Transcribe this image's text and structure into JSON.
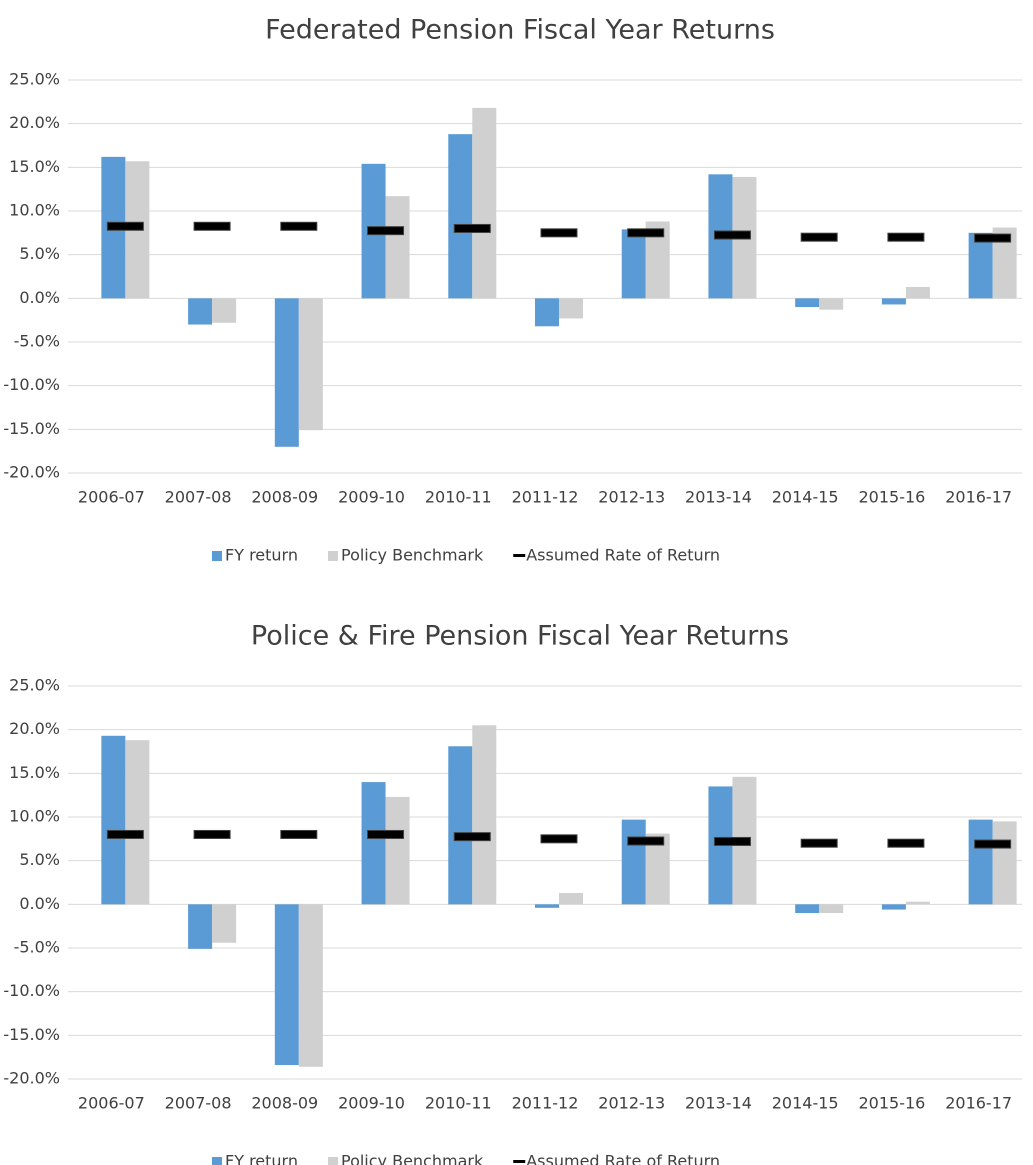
{
  "chart_data": [
    {
      "type": "bar",
      "title": "Federated Pension Fiscal Year Returns",
      "categories": [
        "2006-07",
        "2007-08",
        "2008-09",
        "2009-10",
        "2010-11",
        "2011-12",
        "2012-13",
        "2013-14",
        "2014-15",
        "2015-16",
        "2016-17"
      ],
      "series": [
        {
          "name": "FY return",
          "color": "#5b9bd5",
          "type": "bar",
          "values": [
            16.2,
            -3.0,
            -17.0,
            15.4,
            18.8,
            -3.2,
            7.9,
            14.2,
            -1.0,
            -0.7,
            7.5
          ]
        },
        {
          "name": "Policy Benchmark",
          "color": "#d0d0d0",
          "type": "bar",
          "values": [
            15.7,
            -2.8,
            -15.1,
            11.7,
            21.8,
            -2.3,
            8.8,
            13.9,
            -1.3,
            1.3,
            8.1
          ]
        },
        {
          "name": "Assumed Rate of Return",
          "color": "#000000",
          "type": "marker",
          "values": [
            8.25,
            8.25,
            8.25,
            7.75,
            8.0,
            7.5,
            7.5,
            7.25,
            7.0,
            7.0,
            6.9
          ]
        }
      ],
      "ylim": [
        -20,
        25
      ],
      "yticks": [
        {
          "value": -20,
          "label": "-20.0%"
        },
        {
          "value": -15,
          "label": "-15.0%"
        },
        {
          "value": -10,
          "label": "-10.0%"
        },
        {
          "value": -5,
          "label": "-5.0%"
        },
        {
          "value": 0,
          "label": "0.0%"
        },
        {
          "value": 5,
          "label": "5.0%"
        },
        {
          "value": 10,
          "label": "10.0%"
        },
        {
          "value": 15,
          "label": "15.0%"
        },
        {
          "value": 20,
          "label": "20.0%"
        },
        {
          "value": 25,
          "label": "25.0%"
        }
      ],
      "grid": true,
      "legend": "bottom"
    },
    {
      "type": "bar",
      "title": "Police & Fire Pension Fiscal Year Returns",
      "categories": [
        "2006-07",
        "2007-08",
        "2008-09",
        "2009-10",
        "2010-11",
        "2011-12",
        "2012-13",
        "2013-14",
        "2014-15",
        "2015-16",
        "2016-17"
      ],
      "series": [
        {
          "name": "FY return",
          "color": "#5b9bd5",
          "type": "bar",
          "values": [
            19.3,
            -5.1,
            -18.4,
            14.0,
            18.1,
            -0.4,
            9.7,
            13.5,
            -1.0,
            -0.6,
            9.7
          ]
        },
        {
          "name": "Policy Benchmark",
          "color": "#d0d0d0",
          "type": "bar",
          "values": [
            18.8,
            -4.4,
            -18.6,
            12.3,
            20.5,
            1.3,
            8.1,
            14.6,
            -1.0,
            0.3,
            9.5
          ]
        },
        {
          "name": "Assumed Rate of Return",
          "color": "#000000",
          "type": "marker",
          "values": [
            8.0,
            8.0,
            8.0,
            8.0,
            7.75,
            7.5,
            7.25,
            7.2,
            7.0,
            7.0,
            6.9
          ]
        }
      ],
      "ylim": [
        -20,
        25
      ],
      "yticks": [
        {
          "value": -20,
          "label": "-20.0%"
        },
        {
          "value": -15,
          "label": "-15.0%"
        },
        {
          "value": -10,
          "label": "-10.0%"
        },
        {
          "value": -5,
          "label": "-5.0%"
        },
        {
          "value": 0,
          "label": "0.0%"
        },
        {
          "value": 5,
          "label": "5.0%"
        },
        {
          "value": 10,
          "label": "10.0%"
        },
        {
          "value": 15,
          "label": "15.0%"
        },
        {
          "value": 20,
          "label": "20.0%"
        },
        {
          "value": 25,
          "label": "25.0%"
        }
      ],
      "grid": true,
      "legend": "bottom"
    }
  ]
}
